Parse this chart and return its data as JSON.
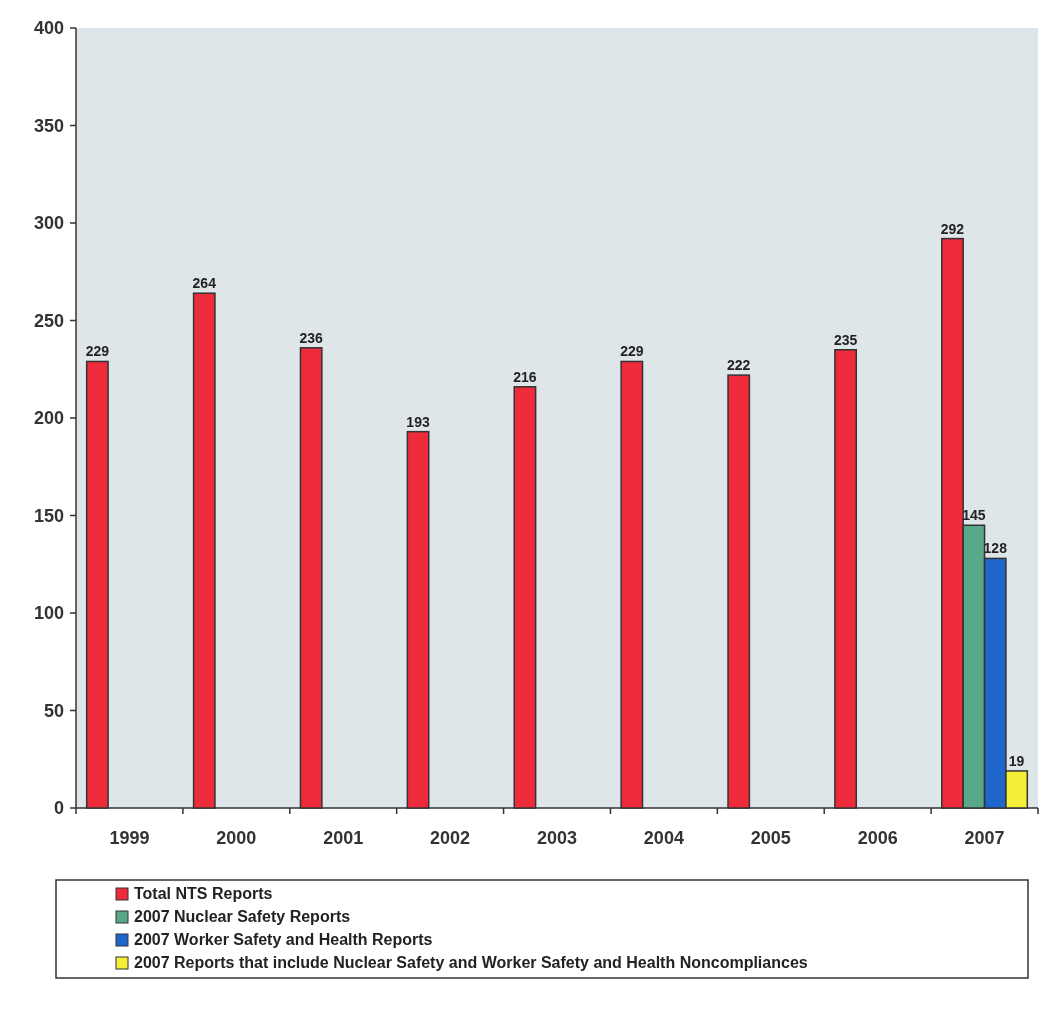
{
  "chart_data": {
    "type": "bar",
    "categories": [
      "1999",
      "2000",
      "2001",
      "2002",
      "2003",
      "2004",
      "2005",
      "2006",
      "2007"
    ],
    "series": [
      {
        "name": "Total NTS Reports",
        "color": "#ee2b3b",
        "values": [
          229,
          264,
          236,
          193,
          216,
          229,
          222,
          235,
          292
        ]
      },
      {
        "name": "2007 Nuclear Safety Reports",
        "color": "#5aa88a",
        "values": [
          null,
          null,
          null,
          null,
          null,
          null,
          null,
          null,
          145
        ]
      },
      {
        "name": "2007 Worker Safety and Health Reports",
        "color": "#1f66cc",
        "values": [
          null,
          null,
          null,
          null,
          null,
          null,
          null,
          null,
          128
        ]
      },
      {
        "name": "2007 Reports that include Nuclear Safety and Worker Safety and Health Noncompliances",
        "color": "#f5ef3a",
        "values": [
          null,
          null,
          null,
          null,
          null,
          null,
          null,
          null,
          19
        ]
      }
    ],
    "ylim": [
      0,
      400
    ],
    "yticks": [
      0,
      50,
      100,
      150,
      200,
      250,
      300,
      350,
      400
    ],
    "grid": false,
    "data_labels": true,
    "legend": "bottom"
  }
}
